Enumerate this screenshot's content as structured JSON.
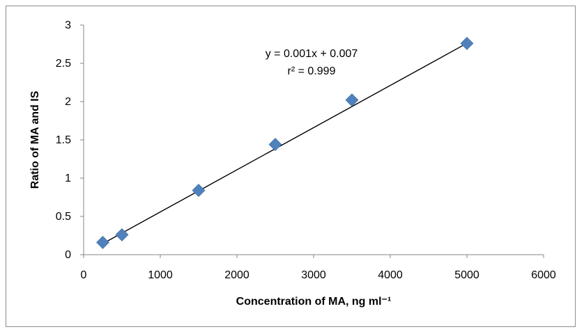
{
  "chart_data": {
    "type": "scatter",
    "title": "",
    "xlabel": "Concentration of MA, ng ml⁻¹",
    "ylabel": "Ratio of MA and IS",
    "xlim": [
      0,
      6000
    ],
    "ylim": [
      0,
      3
    ],
    "x_ticks": [
      0,
      1000,
      2000,
      3000,
      4000,
      5000,
      6000
    ],
    "y_ticks": [
      0,
      0.5,
      1,
      1.5,
      2,
      2.5,
      3
    ],
    "x_tick_labels": [
      "0",
      "1000",
      "2000",
      "3000",
      "4000",
      "5000",
      "6000"
    ],
    "y_tick_labels": [
      "0",
      "0.5",
      "1",
      "1.5",
      "2",
      "2.5",
      "3"
    ],
    "grid": false,
    "legend": "none",
    "series": [
      {
        "marker": "diamond",
        "color": "#4f81bd",
        "x": [
          250,
          500,
          1500,
          2500,
          3500,
          5000
        ],
        "y": [
          0.16,
          0.26,
          0.84,
          1.44,
          2.02,
          2.76
        ]
      }
    ],
    "trendline": {
      "type": "linear",
      "x_range": [
        250,
        5000
      ],
      "slope": 0.000551,
      "intercept": 0.007,
      "color": "#000000"
    },
    "annotations": {
      "equation": "y = 0.001x + 0.007",
      "r_squared": "r² = 0.999"
    }
  }
}
